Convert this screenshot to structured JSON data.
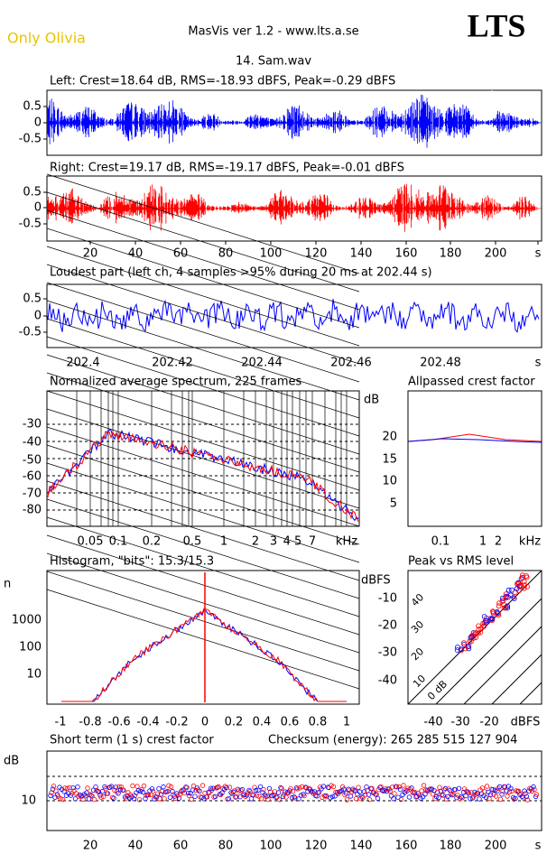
{
  "header": {
    "brand": "Only Olivia",
    "app": "MasVis ver 1.2 - www.lts.a.se",
    "logo": "LTS",
    "file": "14. Sam.wav"
  },
  "left": {
    "title": "Left: Crest=18.64 dB, RMS=-18.93 dBFS, Peak=-0.29 dBFS",
    "yticks": [
      "0.5",
      "0",
      "-0.5"
    ]
  },
  "right": {
    "title": "Right: Crest=19.17 dB, RMS=-19.17 dBFS, Peak=-0.01 dBFS",
    "yticks": [
      "0.5",
      "0",
      "-0.5"
    ]
  },
  "time_axis": [
    "20",
    "40",
    "60",
    "80",
    "100",
    "120",
    "140",
    "160",
    "180",
    "200",
    "s"
  ],
  "loudest": {
    "title": "Loudest part (left  ch, 4 samples >95% during 20 ms at 202.44 s)",
    "yticks": [
      "0.5",
      "0",
      "-0.5"
    ],
    "xticks": [
      "202.4",
      "202.42",
      "202.44",
      "202.46",
      "202.48",
      "s"
    ]
  },
  "spectrum": {
    "title": "Normalized average spectrum, 225 frames",
    "unit": "dB",
    "yticks": [
      "-30",
      "-40",
      "-50",
      "-60",
      "-70",
      "-80"
    ],
    "xticks": [
      "0.05",
      "0.1",
      "0.2",
      "0.5",
      "1",
      "2",
      "3",
      "4 5",
      "7",
      "kHz"
    ]
  },
  "allpass": {
    "title": "Allpassed crest factor",
    "unit": "dB",
    "yticks": [
      "20",
      "15",
      "10",
      "5"
    ],
    "xticks": [
      "0.1",
      "1",
      "2",
      "kHz"
    ]
  },
  "histogram": {
    "title": "Histogram, \"bits\": 15.3/15.3",
    "unit": "n",
    "yticks": [
      "1000",
      "100",
      "10"
    ],
    "xticks": [
      "-1",
      "-0.8",
      "-0.6",
      "-0.4",
      "-0.2",
      "0",
      "0.2",
      "0.4",
      "0.6",
      "0.8",
      "1"
    ]
  },
  "peak_rms": {
    "title": "Peak vs RMS level",
    "unit": "dBFS",
    "yticks": [
      "-10",
      "-20",
      "-30",
      "-40"
    ],
    "xticks": [
      "-40",
      "-30",
      "-20",
      "dBFS"
    ],
    "diagonals": [
      "40",
      "30",
      "20",
      "10",
      "0 dB"
    ]
  },
  "crest": {
    "title": "Short term (1 s) crest factor",
    "checksum": "Checksum (energy):   265 285 515 127 904",
    "unit": "dB",
    "yticks": [
      "10"
    ],
    "xticks": [
      "20",
      "40",
      "60",
      "80",
      "100",
      "120",
      "140",
      "160",
      "180",
      "200",
      "s"
    ]
  }
}
